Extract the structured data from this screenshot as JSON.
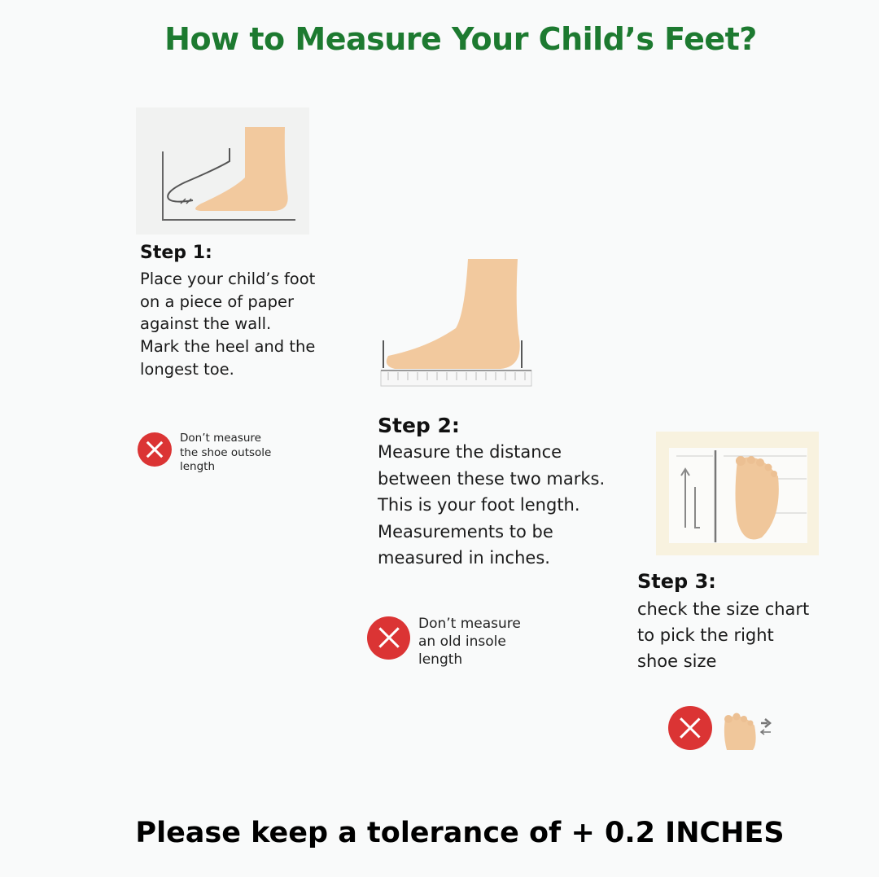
{
  "title": "How to Measure Your Child’s Feet?",
  "colors": {
    "title": "#1d7a30",
    "warning": "#db3434",
    "skin": "#f2c99e"
  },
  "steps": [
    {
      "heading": "Step 1:",
      "lines": [
        "Place your child’s foot",
        "on a piece of paper",
        "against the wall.",
        "Mark the heel and the",
        "longest toe."
      ],
      "warning": [
        "Don’t measure",
        "the shoe outsole",
        "length"
      ],
      "icon": "foot-against-wall-icon"
    },
    {
      "heading": "Step 2:",
      "lines": [
        "Measure the distance",
        "between these two marks.",
        "This is your foot length.",
        "Measurements to be",
        "measured in inches."
      ],
      "warning": [
        "Don’t measure",
        "an old insole",
        "length"
      ],
      "icon": "foot-on-ruler-icon"
    },
    {
      "heading": "Step 3:",
      "lines": [
        "check the size chart",
        "to pick the right",
        "shoe size"
      ],
      "icon": "foot-size-chart-icon"
    }
  ],
  "footer": "Please keep a tolerance of + 0.2 INCHES"
}
